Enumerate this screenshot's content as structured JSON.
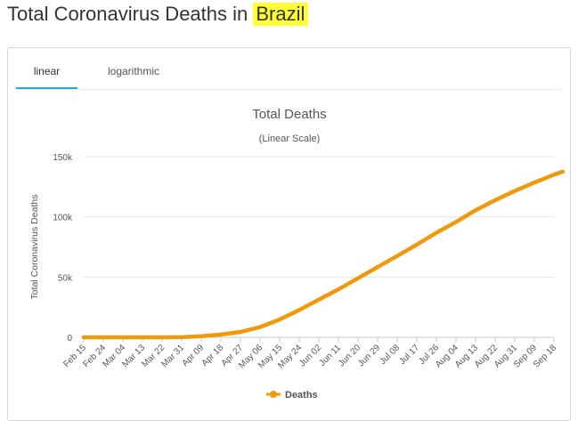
{
  "page": {
    "title_prefix": "Total Coronavirus Deaths in ",
    "title_highlight": "Brazil"
  },
  "tabs": [
    {
      "label": "linear",
      "active": true
    },
    {
      "label": "logarithmic",
      "active": false
    }
  ],
  "colors": {
    "series": "#f0990a",
    "highlight": "#ffff33",
    "active_tab": "#2aa6d6"
  },
  "chart_data": {
    "type": "line",
    "title": "Total Deaths",
    "subtitle": "(Linear Scale)",
    "ylabel": "Total Coronavirus Deaths",
    "xlabel": "",
    "ylim": [
      0,
      150000
    ],
    "yticks": [
      0,
      50000,
      100000,
      150000
    ],
    "ytick_labels": [
      "0",
      "50k",
      "100k",
      "150k"
    ],
    "x_tick_labels": [
      "Feb 15",
      "Feb 24",
      "Mar 04",
      "Mar 13",
      "Mar 22",
      "Mar 31",
      "Apr 09",
      "Apr 18",
      "Apr 27",
      "May 06",
      "May 15",
      "May 24",
      "Jun 02",
      "Jun 11",
      "Jun 20",
      "Jun 29",
      "Jul 08",
      "Jul 17",
      "Jul 26",
      "Aug 04",
      "Aug 13",
      "Aug 22",
      "Aug 31",
      "Sep 09",
      "Sep 18"
    ],
    "grid": "horizontal",
    "legend_position": "bottom",
    "series": [
      {
        "name": "Deaths",
        "points": [
          [
            "Feb 15",
            0
          ],
          [
            "Mar 13",
            0
          ],
          [
            "Mar 22",
            0
          ],
          [
            "Mar 31",
            200
          ],
          [
            "Apr 09",
            950
          ],
          [
            "Apr 18",
            2300
          ],
          [
            "Apr 27",
            4500
          ],
          [
            "May 06",
            8500
          ],
          [
            "May 15",
            14800
          ],
          [
            "May 24",
            22700
          ],
          [
            "Jun 02",
            31300
          ],
          [
            "Jun 11",
            39800
          ],
          [
            "Jun 20",
            49100
          ],
          [
            "Jun 29",
            58300
          ],
          [
            "Jul 08",
            67500
          ],
          [
            "Jul 17",
            77000
          ],
          [
            "Jul 26",
            86800
          ],
          [
            "Aug 04",
            95800
          ],
          [
            "Aug 13",
            105500
          ],
          [
            "Aug 22",
            113900
          ],
          [
            "Aug 31",
            121500
          ],
          [
            "Sep 09",
            128500
          ],
          [
            "Sep 18",
            135000
          ],
          [
            "Sep 22",
            137500
          ]
        ]
      }
    ]
  }
}
